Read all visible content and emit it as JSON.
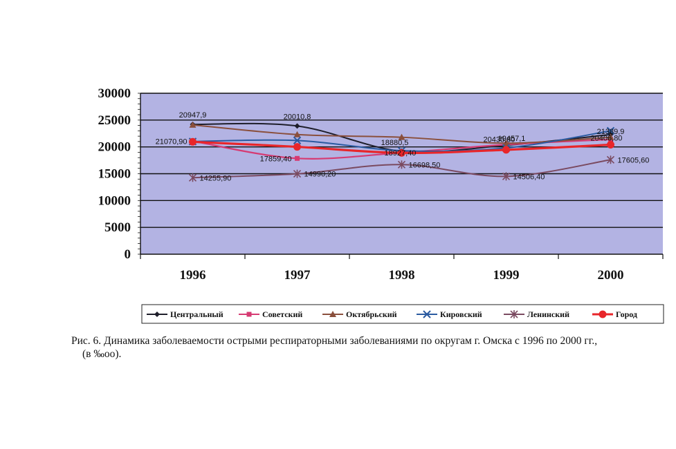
{
  "chart_data": {
    "type": "line",
    "categories": [
      "1996",
      "1997",
      "1998",
      "1999",
      "2000"
    ],
    "ylim": [
      0,
      30000
    ],
    "yticks": [
      "0",
      "5000",
      "10000",
      "15000",
      "20000",
      "25000",
      "30000"
    ],
    "legend_position": "bottom",
    "grid": true,
    "plot_background": "#b3b3e3",
    "series": [
      {
        "name": "Центральный",
        "color": "#1e1e2a",
        "marker": "diamond",
        "values": [
          24200,
          23900,
          19200,
          20300,
          22300
        ],
        "labels": [
          "20947,9",
          "20010,8",
          "",
          "",
          ""
        ]
      },
      {
        "name": "Советский",
        "color": "#d63a72",
        "marker": "square",
        "values": [
          21070.9,
          17859.4,
          18927.4,
          20435.8,
          21389.9
        ],
        "labels": [
          "21070,90",
          "17859,40",
          "18927,40",
          "20435,80",
          "21389,9"
        ]
      },
      {
        "name": "Октябрьский",
        "color": "#8a4f3c",
        "marker": "triangle",
        "values": [
          24100,
          22300,
          21800,
          20700,
          21800
        ],
        "labels": [
          "",
          "",
          "",
          "",
          ""
        ]
      },
      {
        "name": "Кировский",
        "color": "#2a5aa0",
        "marker": "x",
        "values": [
          21000,
          21200,
          19300,
          19800,
          23000
        ],
        "labels": [
          "",
          "",
          "18880,5",
          "19457,1",
          ""
        ]
      },
      {
        "name": "Ленинский",
        "color": "#7a4a60",
        "marker": "star",
        "values": [
          14255.9,
          14990.2,
          16698.5,
          14506.4,
          17605.6
        ],
        "labels": [
          "14255,90",
          "14990,20",
          "16698,50",
          "14506,40",
          "17605,60"
        ]
      },
      {
        "name": "Город",
        "color": "#e8262a",
        "marker": "circle",
        "values": [
          20947.9,
          20010.8,
          18880.5,
          19457.1,
          20406.8
        ],
        "labels": [
          "",
          "",
          "",
          "",
          "20406,80"
        ]
      }
    ]
  },
  "caption": {
    "line1": "Рис. 6. Динамика заболеваемости острыми респираторными заболеваниями по округам г. Омска с 1996 по 2000 гг.,",
    "line2": "(в ‰оо)."
  }
}
